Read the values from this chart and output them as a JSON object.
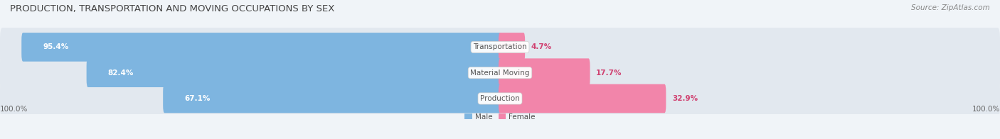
{
  "title": "PRODUCTION, TRANSPORTATION AND MOVING OCCUPATIONS BY SEX",
  "source": "Source: ZipAtlas.com",
  "categories": [
    "Transportation",
    "Material Moving",
    "Production"
  ],
  "male_pct": [
    95.4,
    82.4,
    67.1
  ],
  "female_pct": [
    4.7,
    17.7,
    32.9
  ],
  "male_color": "#7eb5e0",
  "female_color": "#f285aa",
  "bg_color": "#f0f4f8",
  "bar_bg_color": "#e2e8ef",
  "title_fontsize": 9.5,
  "source_fontsize": 7.5,
  "label_fontsize": 7.5,
  "tick_fontsize": 7.5,
  "axis_left_label": "100.0%",
  "axis_right_label": "100.0%",
  "center_label_color": "#555555",
  "male_label_color": "white",
  "female_label_color": "#d04070"
}
